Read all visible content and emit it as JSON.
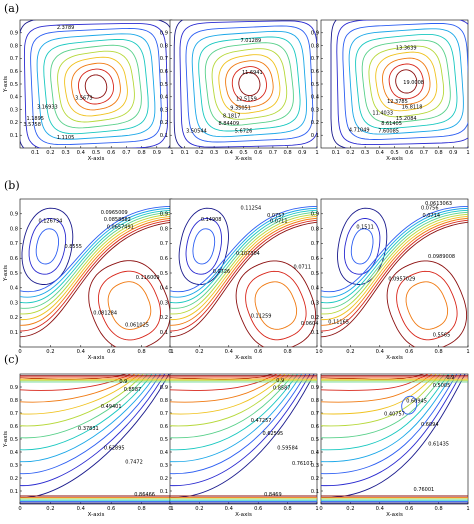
{
  "figure": {
    "row_labels": [
      "(a)",
      "(b)",
      "(c)"
    ]
  },
  "chart_data": [
    {
      "type": "contour",
      "row": "(a)",
      "xlabel": "X-axis",
      "ylabel": "Y-axis",
      "xlim": [
        0,
        1
      ],
      "ylim": [
        0,
        1
      ],
      "xticks_step": 0.1,
      "yticks_step": 0.1,
      "contour_labels": [
        {
          "text": "2.3789",
          "x": 0.3,
          "y": 0.93
        },
        {
          "text": "3.5673",
          "x": 0.42,
          "y": 0.38
        },
        {
          "text": "3.16933",
          "x": 0.18,
          "y": 0.31
        },
        {
          "text": "1.1895",
          "x": 0.1,
          "y": 0.22
        },
        {
          "text": "3.5758",
          "x": 0.08,
          "y": 0.17
        },
        {
          "text": "1.1105",
          "x": 0.3,
          "y": 0.07
        }
      ]
    },
    {
      "type": "contour",
      "row": "(a)",
      "xlabel": "X-axis",
      "ylabel": "",
      "xlim": [
        0,
        1
      ],
      "ylim": [
        0,
        1
      ],
      "contour_labels": [
        {
          "text": "7.01289",
          "x": 0.55,
          "y": 0.83
        },
        {
          "text": "11.6941",
          "x": 0.56,
          "y": 0.58
        },
        {
          "text": "12.5159",
          "x": 0.52,
          "y": 0.37
        },
        {
          "text": "9.35051",
          "x": 0.48,
          "y": 0.3
        },
        {
          "text": "8.1817",
          "x": 0.42,
          "y": 0.24
        },
        {
          "text": "8.84409",
          "x": 0.4,
          "y": 0.18
        },
        {
          "text": "3.50544",
          "x": 0.18,
          "y": 0.12
        },
        {
          "text": "5.6726",
          "x": 0.5,
          "y": 0.12
        }
      ]
    },
    {
      "type": "contour",
      "row": "(a)",
      "xlabel": "X-axis",
      "ylabel": "",
      "xlim": [
        0,
        1
      ],
      "ylim": [
        0,
        1
      ],
      "contour_labels": [
        {
          "text": "13.3639",
          "x": 0.58,
          "y": 0.77
        },
        {
          "text": "19.0008",
          "x": 0.63,
          "y": 0.5
        },
        {
          "text": "12.3785",
          "x": 0.52,
          "y": 0.35
        },
        {
          "text": "16.8118",
          "x": 0.62,
          "y": 0.31
        },
        {
          "text": "11.4033",
          "x": 0.42,
          "y": 0.26
        },
        {
          "text": "15.2084",
          "x": 0.58,
          "y": 0.22
        },
        {
          "text": "8.61405",
          "x": 0.48,
          "y": 0.18
        },
        {
          "text": "4.71049",
          "x": 0.26,
          "y": 0.13
        },
        {
          "text": "7.60085",
          "x": 0.46,
          "y": 0.12
        }
      ]
    },
    {
      "type": "contour",
      "row": "(b)",
      "xlabel": "X-axis",
      "ylabel": "Y-axis",
      "xlim": [
        0,
        1
      ],
      "ylim": [
        0,
        1
      ],
      "xticks_step": 0.2,
      "yticks_step": 0.1,
      "contour_labels": [
        {
          "text": "0.126734",
          "x": 0.2,
          "y": 0.84
        },
        {
          "text": "0.0965009",
          "x": 0.62,
          "y": 0.9
        },
        {
          "text": "0.0858882",
          "x": 0.64,
          "y": 0.85
        },
        {
          "text": "0.0657491",
          "x": 0.66,
          "y": 0.8
        },
        {
          "text": "0.8555",
          "x": 0.35,
          "y": 0.67
        },
        {
          "text": "0.116009",
          "x": 0.84,
          "y": 0.46
        },
        {
          "text": "0.081284",
          "x": 0.56,
          "y": 0.22
        },
        {
          "text": "0.061025",
          "x": 0.77,
          "y": 0.14
        }
      ]
    },
    {
      "type": "contour",
      "row": "(b)",
      "xlabel": "X-axis",
      "ylabel": "",
      "xlim": [
        0,
        1
      ],
      "ylim": [
        0,
        1
      ],
      "contour_labels": [
        {
          "text": "0.14908",
          "x": 0.28,
          "y": 0.85
        },
        {
          "text": "0.11254",
          "x": 0.55,
          "y": 0.93
        },
        {
          "text": "0.0757",
          "x": 0.72,
          "y": 0.88
        },
        {
          "text": "0.0711",
          "x": 0.74,
          "y": 0.84
        },
        {
          "text": "0.0726",
          "x": 0.35,
          "y": 0.5
        },
        {
          "text": "0.0711",
          "x": 0.9,
          "y": 0.53
        },
        {
          "text": "0.107304",
          "x": 0.53,
          "y": 0.62
        },
        {
          "text": "0.11259",
          "x": 0.62,
          "y": 0.2
        },
        {
          "text": "0.0604",
          "x": 0.95,
          "y": 0.15
        }
      ]
    },
    {
      "type": "contour",
      "row": "(b)",
      "xlabel": "X-axis",
      "ylabel": "",
      "xlim": [
        0,
        1
      ],
      "ylim": [
        0,
        1
      ],
      "contour_labels": [
        {
          "text": "0.0613063",
          "x": 0.8,
          "y": 0.96
        },
        {
          "text": "0.0756",
          "x": 0.74,
          "y": 0.93
        },
        {
          "text": "0.0714",
          "x": 0.75,
          "y": 0.88
        },
        {
          "text": "0.1511",
          "x": 0.3,
          "y": 0.8
        },
        {
          "text": "0.0957029",
          "x": 0.55,
          "y": 0.45
        },
        {
          "text": "0.0989008",
          "x": 0.82,
          "y": 0.6
        },
        {
          "text": "0.11165",
          "x": 0.12,
          "y": 0.16
        },
        {
          "text": "0.5565",
          "x": 0.82,
          "y": 0.07
        }
      ]
    },
    {
      "type": "contour",
      "row": "(c)",
      "xlabel": "X-axis",
      "ylabel": "Y-axis",
      "xlim": [
        0,
        1
      ],
      "ylim": [
        0,
        1
      ],
      "xticks_step": 0.2,
      "yticks_step": 0.1,
      "contour_labels": [
        {
          "text": "0.9",
          "x": 0.68,
          "y": 0.93
        },
        {
          "text": "0.8587",
          "x": 0.74,
          "y": 0.87
        },
        {
          "text": "0.49401",
          "x": 0.6,
          "y": 0.74
        },
        {
          "text": "0.37831",
          "x": 0.45,
          "y": 0.57
        },
        {
          "text": "0.62895",
          "x": 0.62,
          "y": 0.42
        },
        {
          "text": "0.7472",
          "x": 0.75,
          "y": 0.31
        },
        {
          "text": "0.86466",
          "x": 0.82,
          "y": 0.06
        }
      ]
    },
    {
      "type": "contour",
      "row": "(c)",
      "xlabel": "X-axis",
      "ylabel": "",
      "xlim": [
        0,
        1
      ],
      "ylim": [
        0,
        1
      ],
      "contour_labels": [
        {
          "text": "0.9",
          "x": 0.75,
          "y": 0.94
        },
        {
          "text": "0.8587",
          "x": 0.76,
          "y": 0.88
        },
        {
          "text": "0.47257",
          "x": 0.62,
          "y": 0.63
        },
        {
          "text": "0.62595",
          "x": 0.7,
          "y": 0.53
        },
        {
          "text": "0.59584",
          "x": 0.8,
          "y": 0.42
        },
        {
          "text": "0.76107",
          "x": 0.9,
          "y": 0.3
        },
        {
          "text": "0.8469",
          "x": 0.7,
          "y": 0.06
        }
      ]
    },
    {
      "type": "contour",
      "row": "(c)",
      "xlabel": "X-axis",
      "ylabel": "",
      "xlim": [
        0,
        1
      ],
      "ylim": [
        0,
        1
      ],
      "contour_labels": [
        {
          "text": "0.9",
          "x": 0.88,
          "y": 0.96
        },
        {
          "text": "0.5005",
          "x": 0.82,
          "y": 0.9
        },
        {
          "text": "0.60945",
          "x": 0.65,
          "y": 0.78
        },
        {
          "text": "0.40757",
          "x": 0.5,
          "y": 0.68
        },
        {
          "text": "0.6094",
          "x": 0.74,
          "y": 0.6
        },
        {
          "text": "0.61435",
          "x": 0.8,
          "y": 0.45
        },
        {
          "text": "0.76001",
          "x": 0.7,
          "y": 0.1
        }
      ]
    }
  ]
}
